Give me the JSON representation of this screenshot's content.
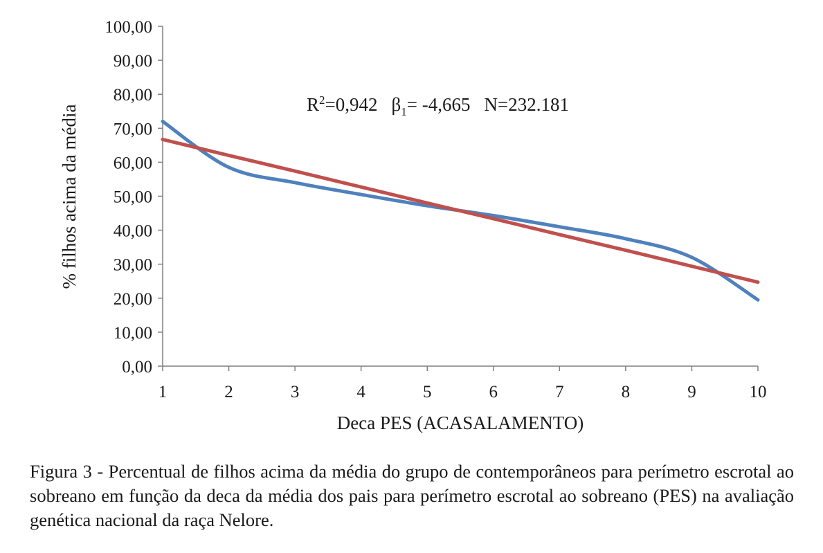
{
  "chart_data": {
    "type": "line",
    "xlabel": "Deca PES (ACASALAMENTO)",
    "ylabel": "% filhos acima da média",
    "x": [
      1,
      2,
      3,
      4,
      5,
      6,
      7,
      8,
      9,
      10
    ],
    "x_tick_labels": [
      "1",
      "2",
      "3",
      "4",
      "5",
      "6",
      "7",
      "8",
      "9",
      "10"
    ],
    "y_tick_labels": [
      "0,00",
      "10,00",
      "20,00",
      "30,00",
      "40,00",
      "50,00",
      "60,00",
      "70,00",
      "80,00",
      "90,00",
      "100,00"
    ],
    "xlim": [
      1,
      10
    ],
    "ylim": [
      0,
      100
    ],
    "grid": false,
    "legend": "none",
    "series": [
      {
        "values": [
          72.0,
          58.5,
          54.0,
          50.5,
          47.2,
          44.3,
          41.0,
          37.5,
          32.0,
          19.5
        ],
        "color": "#4f81bd",
        "style": "smooth"
      },
      {
        "values": [
          66.7,
          62.0,
          57.4,
          52.7,
          48.0,
          43.4,
          38.7,
          34.1,
          29.4,
          24.7
        ],
        "color": "#c0504d",
        "style": "linear-trend"
      }
    ],
    "annotation": {
      "r2_label": "R",
      "r2_sup": "2",
      "r2_value": "=0,942",
      "beta_label": "β",
      "beta_sub": "1",
      "beta_value": "= -4,665",
      "n_text": "N=232.181"
    }
  },
  "caption": {
    "text": "Figura 3 - Percentual de filhos acima da média do grupo de contemporâneos para perímetro escrotal ao sobreano em função da deca da média dos pais para perímetro escrotal ao sobreano (PES) na avaliação genética nacional da raça Nelore."
  }
}
